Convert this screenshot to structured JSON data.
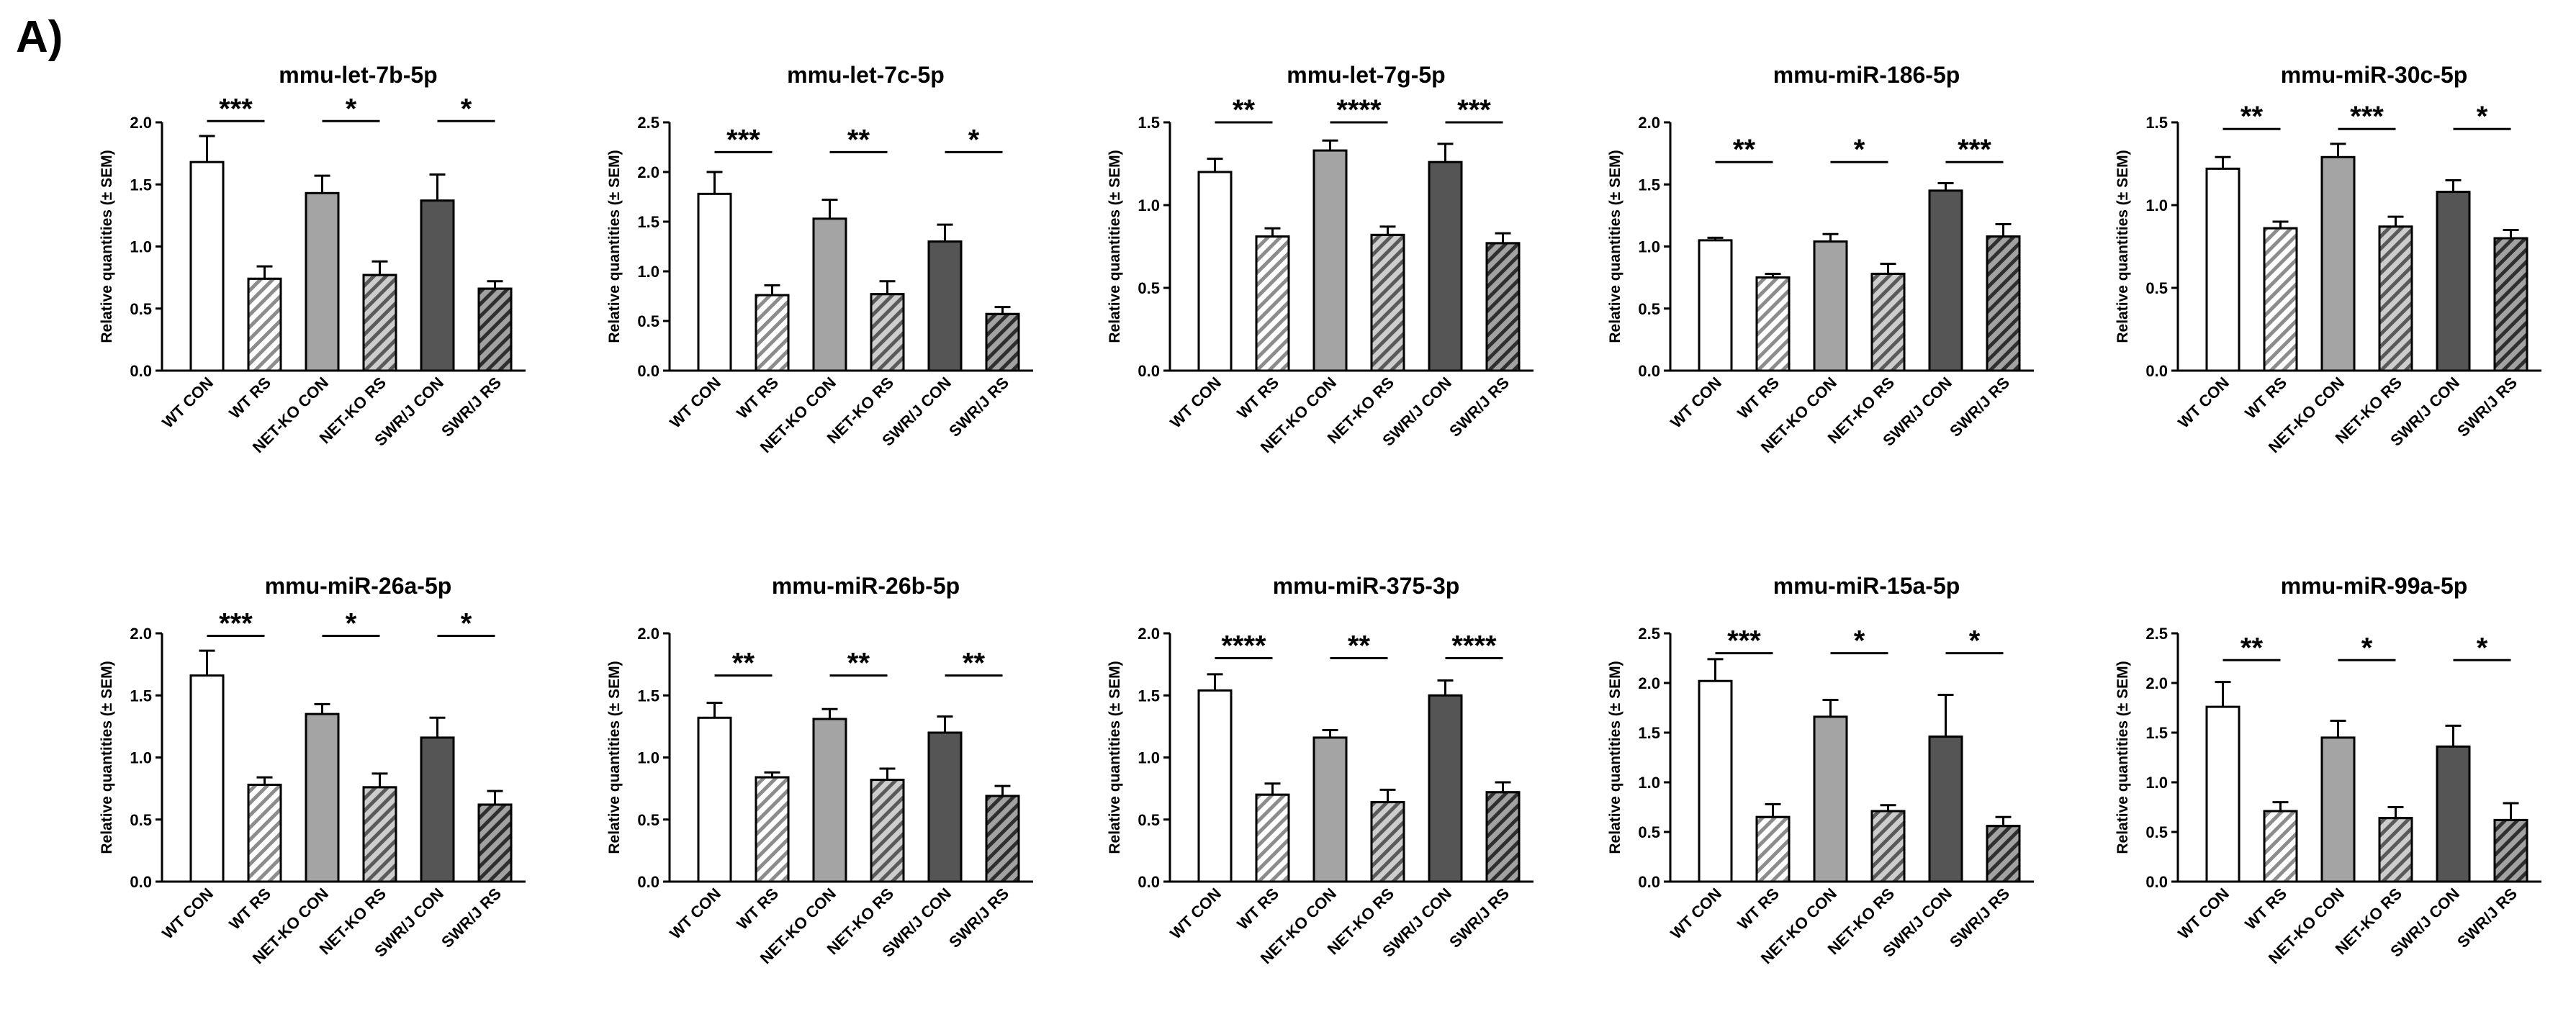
{
  "panel_label": "A)",
  "chart_data": [
    {
      "type": "bar",
      "title": "mmu-let-7b-5p",
      "ylabel": "Relative quantities (± SEM)",
      "ylim": [
        0,
        2.0
      ],
      "yticks": [
        "0.0",
        "0.5",
        "1.0",
        "1.5",
        "2.0"
      ],
      "categories": [
        "WT CON",
        "WT RS",
        "NET-KO CON",
        "NET-KO RS",
        "SWR/J CON",
        "SWR/J RS"
      ],
      "values": [
        1.68,
        0.74,
        1.43,
        0.77,
        1.37,
        0.66
      ],
      "errors": [
        0.21,
        0.1,
        0.14,
        0.11,
        0.21,
        0.06
      ],
      "significance": [
        {
          "label": "***",
          "y": 2.01
        },
        {
          "label": "*",
          "y": 2.01
        },
        {
          "label": "*",
          "y": 2.01
        }
      ]
    },
    {
      "type": "bar",
      "title": "mmu-let-7c-5p",
      "ylabel": "Relative quantities (± SEM)",
      "ylim": [
        0,
        2.5
      ],
      "yticks": [
        "0.0",
        "0.5",
        "1.0",
        "1.5",
        "2.0",
        "2.5"
      ],
      "categories": [
        "WT CON",
        "WT RS",
        "NET-KO CON",
        "NET-KO RS",
        "SWR/J CON",
        "SWR/J RS"
      ],
      "values": [
        1.78,
        0.76,
        1.53,
        0.77,
        1.3,
        0.57
      ],
      "errors": [
        0.22,
        0.1,
        0.19,
        0.13,
        0.17,
        0.07
      ],
      "significance": [
        {
          "label": "***",
          "y": 2.2
        },
        {
          "label": "**",
          "y": 2.2
        },
        {
          "label": "*",
          "y": 2.2
        }
      ]
    },
    {
      "type": "bar",
      "title": "mmu-let-7g-5p",
      "ylabel": "Relative quantities (± SEM)",
      "ylim": [
        0,
        1.5
      ],
      "yticks": [
        "0.0",
        "0.5",
        "1.0",
        "1.5"
      ],
      "categories": [
        "WT CON",
        "WT RS",
        "NET-KO CON",
        "NET-KO RS",
        "SWR/J CON",
        "SWR/J RS"
      ],
      "values": [
        1.2,
        0.81,
        1.33,
        0.82,
        1.26,
        0.77
      ],
      "errors": [
        0.08,
        0.05,
        0.06,
        0.05,
        0.11,
        0.06
      ],
      "significance": [
        {
          "label": "**",
          "y": 1.5
        },
        {
          "label": "****",
          "y": 1.5
        },
        {
          "label": "***",
          "y": 1.5
        }
      ]
    },
    {
      "type": "bar",
      "title": "mmu-miR-186-5p",
      "ylabel": "Relative quantities (± SEM)",
      "ylim": [
        0,
        2.0
      ],
      "yticks": [
        "0.0",
        "0.5",
        "1.0",
        "1.5",
        "2.0"
      ],
      "categories": [
        "WT CON",
        "WT RS",
        "NET-KO CON",
        "NET-KO RS",
        "SWR/J CON",
        "SWR/J RS"
      ],
      "values": [
        1.05,
        0.75,
        1.04,
        0.78,
        1.45,
        1.08
      ],
      "errors": [
        0.02,
        0.03,
        0.06,
        0.08,
        0.06,
        0.1
      ],
      "significance": [
        {
          "label": "**",
          "y": 1.68
        },
        {
          "label": "*",
          "y": 1.68
        },
        {
          "label": "***",
          "y": 1.68
        }
      ]
    },
    {
      "type": "bar",
      "title": "mmu-miR-30c-5p",
      "ylabel": "Relative quantities (± SEM)",
      "ylim": [
        0,
        1.5
      ],
      "yticks": [
        "0.0",
        "0.5",
        "1.0",
        "1.5"
      ],
      "categories": [
        "WT CON",
        "WT RS",
        "NET-KO CON",
        "NET-KO RS",
        "SWR/J CON",
        "SWR/J RS"
      ],
      "values": [
        1.22,
        0.86,
        1.29,
        0.87,
        1.08,
        0.8
      ],
      "errors": [
        0.07,
        0.04,
        0.08,
        0.06,
        0.07,
        0.05
      ],
      "significance": [
        {
          "label": "**",
          "y": 1.46
        },
        {
          "label": "***",
          "y": 1.46
        },
        {
          "label": "*",
          "y": 1.46
        }
      ]
    },
    {
      "type": "bar",
      "title": "mmu-miR-26a-5p",
      "ylabel": "Relative quantities (± SEM)",
      "ylim": [
        0,
        2.0
      ],
      "yticks": [
        "0.0",
        "0.5",
        "1.0",
        "1.5",
        "2.0"
      ],
      "categories": [
        "WT CON",
        "WT RS",
        "NET-KO CON",
        "NET-KO RS",
        "SWR/J CON",
        "SWR/J RS"
      ],
      "values": [
        1.66,
        0.78,
        1.35,
        0.76,
        1.16,
        0.62
      ],
      "errors": [
        0.2,
        0.06,
        0.08,
        0.11,
        0.16,
        0.11
      ],
      "significance": [
        {
          "label": "***",
          "y": 1.98
        },
        {
          "label": "*",
          "y": 1.98
        },
        {
          "label": "*",
          "y": 1.98
        }
      ]
    },
    {
      "type": "bar",
      "title": "mmu-miR-26b-5p",
      "ylabel": "Relative quantities (± SEM)",
      "ylim": [
        0,
        2.0
      ],
      "yticks": [
        "0.0",
        "0.5",
        "1.0",
        "1.5",
        "2.0"
      ],
      "categories": [
        "WT CON",
        "WT RS",
        "NET-KO CON",
        "NET-KO RS",
        "SWR/J CON",
        "SWR/J RS"
      ],
      "values": [
        1.32,
        0.84,
        1.31,
        0.82,
        1.2,
        0.69
      ],
      "errors": [
        0.12,
        0.04,
        0.08,
        0.09,
        0.13,
        0.08
      ],
      "significance": [
        {
          "label": "**",
          "y": 1.66
        },
        {
          "label": "**",
          "y": 1.66
        },
        {
          "label": "**",
          "y": 1.66
        }
      ]
    },
    {
      "type": "bar",
      "title": "mmu-miR-375-3p",
      "ylabel": "Relative quantities (± SEM)",
      "ylim": [
        0,
        2.0
      ],
      "yticks": [
        "0.0",
        "0.5",
        "1.0",
        "1.5",
        "2.0"
      ],
      "categories": [
        "WT CON",
        "WT RS",
        "NET-KO CON",
        "NET-KO RS",
        "SWR/J CON",
        "SWR/J RS"
      ],
      "values": [
        1.54,
        0.7,
        1.16,
        0.64,
        1.5,
        0.72
      ],
      "errors": [
        0.13,
        0.09,
        0.06,
        0.1,
        0.12,
        0.08
      ],
      "significance": [
        {
          "label": "****",
          "y": 1.8
        },
        {
          "label": "**",
          "y": 1.8
        },
        {
          "label": "****",
          "y": 1.8
        }
      ]
    },
    {
      "type": "bar",
      "title": "mmu-miR-15a-5p",
      "ylabel": "Relative quantities (± SEM)",
      "ylim": [
        0,
        2.5
      ],
      "yticks": [
        "0.0",
        "0.5",
        "1.0",
        "1.5",
        "2.0",
        "2.5"
      ],
      "categories": [
        "WT CON",
        "WT RS",
        "NET-KO CON",
        "NET-KO RS",
        "SWR/J CON",
        "SWR/J RS"
      ],
      "values": [
        2.02,
        0.65,
        1.66,
        0.71,
        1.46,
        0.56
      ],
      "errors": [
        0.22,
        0.13,
        0.17,
        0.06,
        0.42,
        0.09
      ],
      "significance": [
        {
          "label": "***",
          "y": 2.3
        },
        {
          "label": "*",
          "y": 2.3
        },
        {
          "label": "*",
          "y": 2.3
        }
      ]
    },
    {
      "type": "bar",
      "title": "mmu-miR-99a-5p",
      "ylabel": "Relative quantities (± SEM)",
      "ylim": [
        0,
        2.5
      ],
      "yticks": [
        "0.0",
        "0.5",
        "1.0",
        "1.5",
        "2.0",
        "2.5"
      ],
      "categories": [
        "WT CON",
        "WT RS",
        "NET-KO CON",
        "NET-KO RS",
        "SWR/J CON",
        "SWR/J RS"
      ],
      "values": [
        1.76,
        0.71,
        1.45,
        0.64,
        1.36,
        0.62
      ],
      "errors": [
        0.25,
        0.09,
        0.17,
        0.11,
        0.21,
        0.17
      ],
      "significance": [
        {
          "label": "**",
          "y": 2.23
        },
        {
          "label": "*",
          "y": 2.23
        },
        {
          "label": "*",
          "y": 2.23
        }
      ]
    }
  ],
  "bar_styles": [
    {
      "fill": "#ffffff",
      "hatch": false
    },
    {
      "fill": "#ffffff",
      "hatch": true
    },
    {
      "fill": "#a4a4a4",
      "hatch": false
    },
    {
      "fill": "#a4a4a4",
      "hatch": true
    },
    {
      "fill": "#555555",
      "hatch": false
    },
    {
      "fill": "#555555",
      "hatch": true
    }
  ]
}
